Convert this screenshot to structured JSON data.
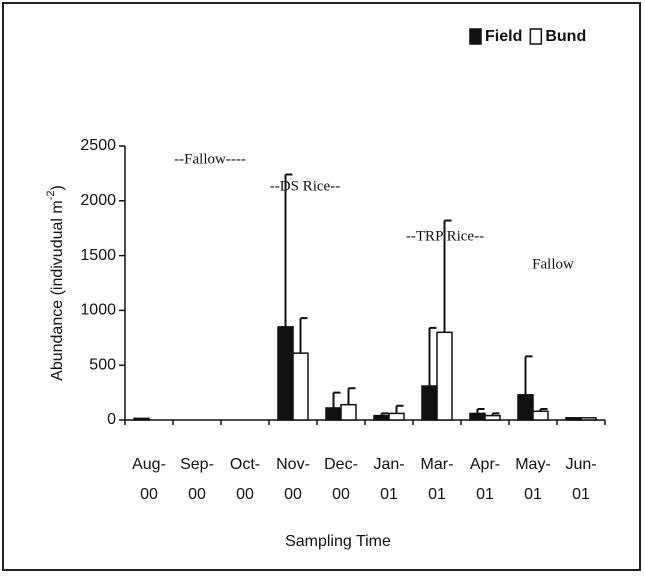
{
  "chart_data": {
    "type": "bar",
    "xlabel": "Sampling Time",
    "ylabel": {
      "text": "Abundance (indivudual m",
      "sup": "-2",
      "after": ")"
    },
    "categories": [
      [
        "Aug-",
        "00"
      ],
      [
        "Sep-",
        "00"
      ],
      [
        "Oct-",
        "00"
      ],
      [
        "Nov-",
        "00"
      ],
      [
        "Dec-",
        "00"
      ],
      [
        "Jan-",
        "01"
      ],
      [
        "Mar-",
        "01"
      ],
      [
        "Apr-",
        "01"
      ],
      [
        "May-",
        "01"
      ],
      [
        "Jun-",
        "01"
      ]
    ],
    "series": [
      {
        "name": "Field",
        "color": "#111111",
        "values": [
          15,
          0,
          0,
          850,
          110,
          40,
          310,
          60,
          230,
          20
        ],
        "errors": [
          0,
          0,
          0,
          1390,
          140,
          20,
          530,
          40,
          350,
          0
        ]
      },
      {
        "name": "Bund",
        "color": "#ffffff",
        "values": [
          0,
          0,
          0,
          610,
          140,
          60,
          800,
          40,
          80,
          20
        ],
        "errors": [
          0,
          0,
          0,
          320,
          150,
          70,
          1020,
          20,
          20,
          0
        ]
      }
    ],
    "ylim": [
      0,
      2500
    ],
    "yticks": [
      0,
      500,
      1000,
      1500,
      2000,
      2500
    ],
    "legend": "top-right",
    "annotations": [
      "--Fallow----",
      "--DS Rice--",
      "--TRP Rice--",
      "Fallow"
    ]
  }
}
